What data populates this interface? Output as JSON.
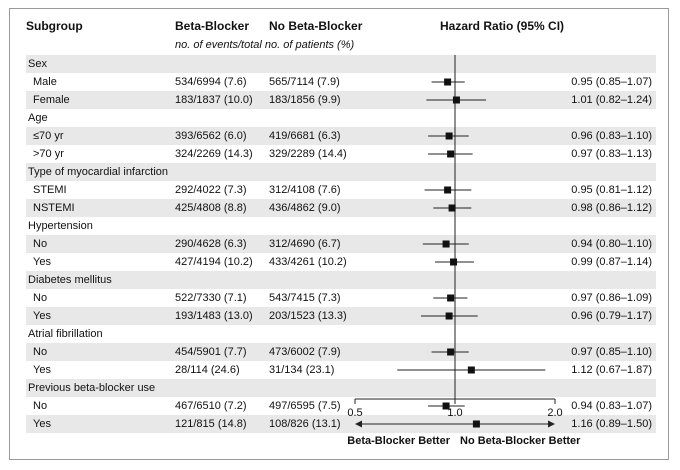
{
  "header": {
    "subgroup": "Subgroup",
    "col1": "Beta-Blocker",
    "col2": "No Beta-Blocker",
    "hr": "Hazard Ratio (95% CI)",
    "sub": "no. of events/total no. of patients (%)"
  },
  "rows": [
    {
      "label": "Sex",
      "group": true
    },
    {
      "label": "Male",
      "bb": "534/6994 (7.6)",
      "nobb": "565/7114 (7.9)",
      "ci": "0.95 (0.85–1.07)"
    },
    {
      "label": "Female",
      "bb": "183/1837 (10.0)",
      "nobb": "183/1856 (9.9)",
      "ci": "1.01 (0.82–1.24)"
    },
    {
      "label": "Age",
      "group": true
    },
    {
      "label": "≤70 yr",
      "bb": "393/6562 (6.0)",
      "nobb": "419/6681 (6.3)",
      "ci": "0.96 (0.83–1.10)"
    },
    {
      "label": ">70 yr",
      "bb": "324/2269 (14.3)",
      "nobb": "329/2289 (14.4)",
      "ci": "0.97 (0.83–1.13)"
    },
    {
      "label": "Type of myocardial infarction",
      "group": true
    },
    {
      "label": "STEMI",
      "bb": "292/4022 (7.3)",
      "nobb": "312/4108 (7.6)",
      "ci": "0.95 (0.81–1.12)"
    },
    {
      "label": "NSTEMI",
      "bb": "425/4808 (8.8)",
      "nobb": "436/4862 (9.0)",
      "ci": "0.98 (0.86–1.12)"
    },
    {
      "label": "Hypertension",
      "group": true
    },
    {
      "label": "No",
      "bb": "290/4628 (6.3)",
      "nobb": "312/4690 (6.7)",
      "ci": "0.94 (0.80–1.10)"
    },
    {
      "label": "Yes",
      "bb": "427/4194 (10.2)",
      "nobb": "433/4261 (10.2)",
      "ci": "0.99 (0.87–1.14)"
    },
    {
      "label": "Diabetes mellitus",
      "group": true
    },
    {
      "label": "No",
      "bb": "522/7330 (7.1)",
      "nobb": "543/7415 (7.3)",
      "ci": "0.97 (0.86–1.09)"
    },
    {
      "label": "Yes",
      "bb": "193/1483 (13.0)",
      "nobb": "203/1523 (13.3)",
      "ci": "0.96 (0.79–1.17)"
    },
    {
      "label": "Atrial fibrillation",
      "group": true
    },
    {
      "label": "No",
      "bb": "454/5901 (7.7)",
      "nobb": "473/6002 (7.9)",
      "ci": "0.97 (0.85–1.10)"
    },
    {
      "label": "Yes",
      "bb": "28/114 (24.6)",
      "nobb": "31/134 (23.1)",
      "ci": "1.12 (0.67–1.87)"
    },
    {
      "label": "Previous beta-blocker use",
      "group": true
    },
    {
      "label": "No",
      "bb": "467/6510 (7.2)",
      "nobb": "497/6595 (7.5)",
      "ci": "0.94 (0.83–1.07)"
    },
    {
      "label": "Yes",
      "bb": "121/815 (14.8)",
      "nobb": "108/826 (13.1)",
      "ci": "1.16 (0.89–1.50)"
    }
  ],
  "chart_data": {
    "type": "forest",
    "scale": "log",
    "xlim": [
      0.5,
      2.0
    ],
    "ticks": [
      "0.5",
      "1.0",
      "2.0"
    ],
    "reference_line": 1.0,
    "left_label": "Beta-Blocker Better",
    "right_label": "No Beta-Blocker Better",
    "points": [
      {
        "label": "Male",
        "hr": 0.95,
        "lo": 0.85,
        "hi": 1.07
      },
      {
        "label": "Female",
        "hr": 1.01,
        "lo": 0.82,
        "hi": 1.24
      },
      {
        "label": "≤70 yr",
        "hr": 0.96,
        "lo": 0.83,
        "hi": 1.1
      },
      {
        "label": ">70 yr",
        "hr": 0.97,
        "lo": 0.83,
        "hi": 1.13
      },
      {
        "label": "STEMI",
        "hr": 0.95,
        "lo": 0.81,
        "hi": 1.12
      },
      {
        "label": "NSTEMI",
        "hr": 0.98,
        "lo": 0.86,
        "hi": 1.12
      },
      {
        "label": "No",
        "hr": 0.94,
        "lo": 0.8,
        "hi": 1.1
      },
      {
        "label": "Yes",
        "hr": 0.99,
        "lo": 0.87,
        "hi": 1.14
      },
      {
        "label": "No",
        "hr": 0.97,
        "lo": 0.86,
        "hi": 1.09
      },
      {
        "label": "Yes",
        "hr": 0.96,
        "lo": 0.79,
        "hi": 1.17
      },
      {
        "label": "No",
        "hr": 0.97,
        "lo": 0.85,
        "hi": 1.1
      },
      {
        "label": "Yes",
        "hr": 1.12,
        "lo": 0.67,
        "hi": 1.87
      },
      {
        "label": "No",
        "hr": 0.94,
        "lo": 0.83,
        "hi": 1.07
      },
      {
        "label": "Yes",
        "hr": 1.16,
        "lo": 0.89,
        "hi": 1.5
      }
    ]
  }
}
